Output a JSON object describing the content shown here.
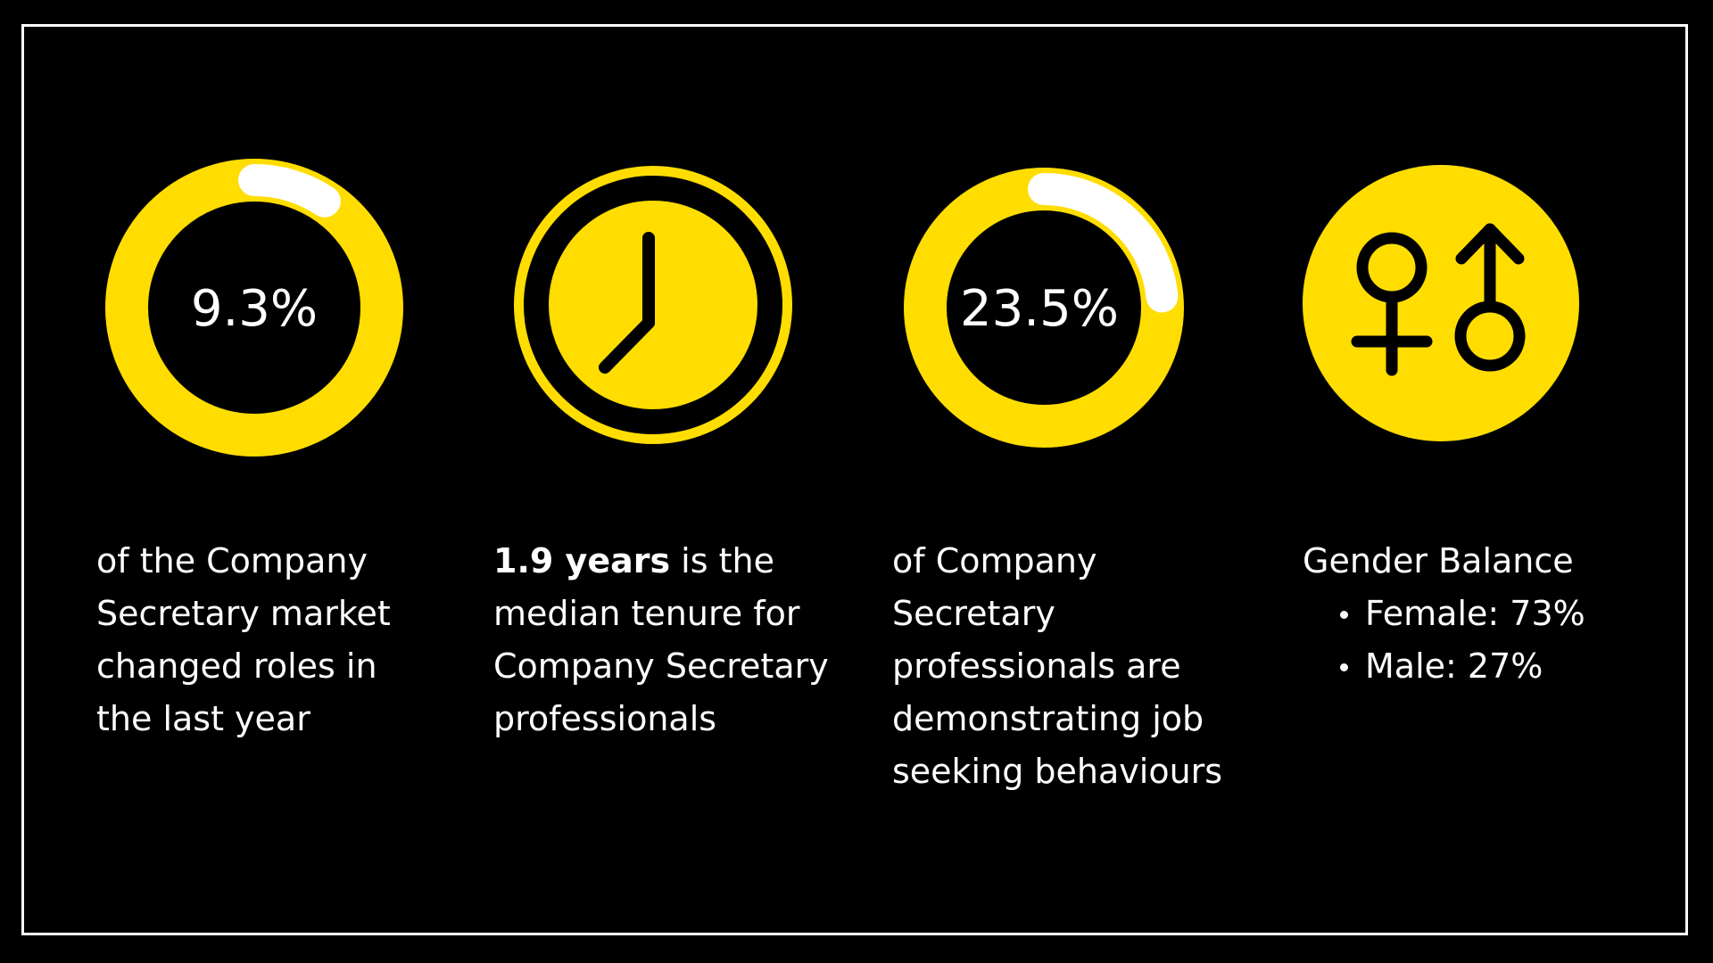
{
  "colors": {
    "background": "#000000",
    "accent": "#FFDD00",
    "highlight": "#FFFFFF"
  },
  "stats": [
    {
      "type": "donut",
      "value_label": "9.3%",
      "value": 9.3,
      "caption": "of the Company Secretary market changed roles in the last year"
    },
    {
      "type": "clock",
      "icon": "clock-icon",
      "caption_bold": "1.9 years",
      "caption_rest": " is the median tenure for Company Secretary professionals"
    },
    {
      "type": "donut",
      "value_label": "23.5%",
      "value": 23.5,
      "caption": "of Company Secretary professionals are demonstrating job seeking behaviours"
    },
    {
      "type": "gender",
      "icon": "gender-symbols-icon",
      "title": "Gender Balance",
      "items": [
        "Female: 73%",
        "Male: 27%"
      ]
    }
  ]
}
